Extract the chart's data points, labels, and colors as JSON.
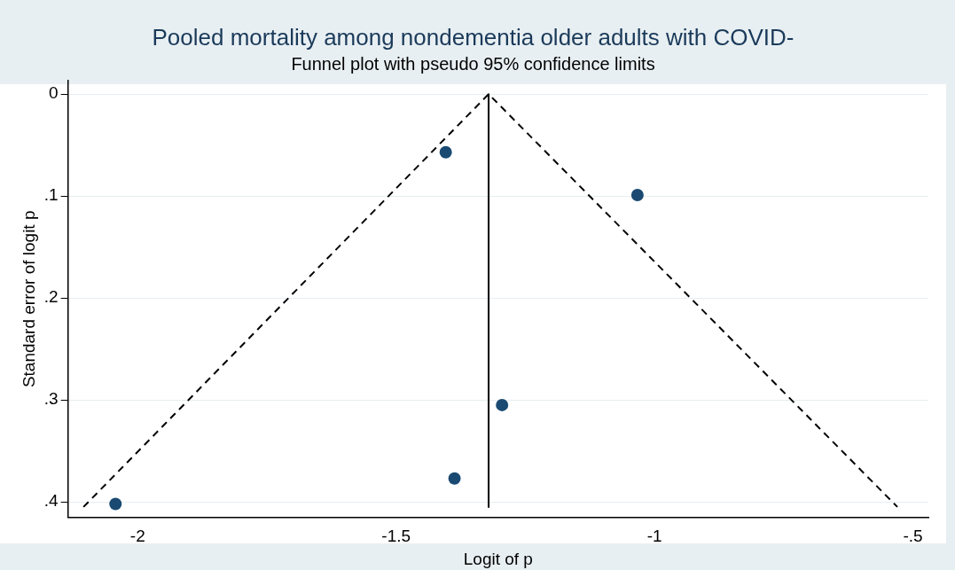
{
  "chart_data": {
    "type": "scatter",
    "title": "Pooled mortality among nondementia older adults with COVID-",
    "subtitle": "Funnel plot with pseudo 95% confidence limits",
    "xlabel": "Logit of p",
    "ylabel": "Standard error of logit p",
    "xlim": [
      -2.135,
      -0.47
    ],
    "xticks": [
      -2,
      -1.5,
      -1,
      {
        "value": -0.5,
        "label": "-.5"
      }
    ],
    "ylim": [
      0.415,
      -0.013
    ],
    "yticks": [
      0,
      {
        "value": 0.1,
        "label": ".1"
      },
      {
        "value": 0.2,
        "label": ".2"
      },
      {
        "value": 0.3,
        "label": ".3"
      },
      {
        "value": 0.4,
        "label": ".4"
      }
    ],
    "grid": "y",
    "legend": false,
    "series": [
      {
        "type": "line",
        "color": "#000000",
        "marker": "none",
        "line_style": "dashed",
        "x": [
          -2.105,
          -1.321,
          -0.53
        ],
        "values": [
          0.405,
          0,
          0.405
        ]
      },
      {
        "type": "line",
        "color": "#000000",
        "marker": "none",
        "line_style": "solid",
        "x": [
          -1.321,
          -1.321
        ],
        "values": [
          0,
          0.405
        ]
      },
      {
        "color": "#1a4a72",
        "marker": "circle",
        "x": [
          -1.404,
          -1.033,
          -1.295,
          -1.387,
          -2.043
        ],
        "values": [
          0.057,
          0.099,
          0.305,
          0.377,
          0.402
        ]
      }
    ]
  }
}
